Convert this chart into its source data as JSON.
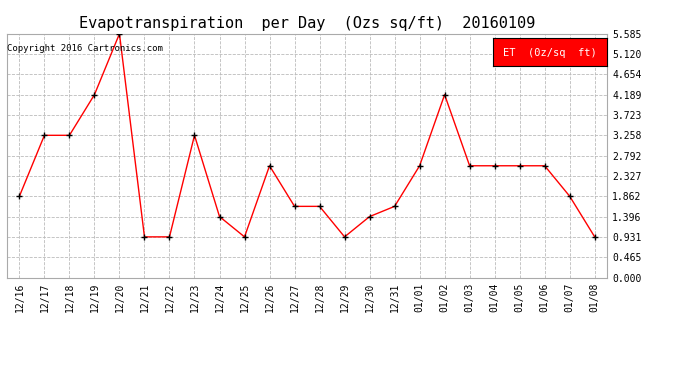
{
  "title": "Evapotranspiration  per Day  (Ozs sq/ft)  20160109",
  "copyright": "Copyright 2016 Cartronics.com",
  "legend_label": "ET  (0z/sq  ft)",
  "line_color": "red",
  "marker": "+",
  "marker_color": "black",
  "background_color": "#ffffff",
  "grid_color": "#bbbbbb",
  "legend_bg": "red",
  "legend_text_color": "white",
  "dates": [
    "12/16",
    "12/17",
    "12/18",
    "12/19",
    "12/20",
    "12/21",
    "12/22",
    "12/23",
    "12/24",
    "12/25",
    "12/26",
    "12/27",
    "12/28",
    "12/29",
    "12/30",
    "12/31",
    "01/01",
    "01/02",
    "01/03",
    "01/04",
    "01/05",
    "01/06",
    "01/07",
    "01/08"
  ],
  "values": [
    1.862,
    3.258,
    3.258,
    4.189,
    5.585,
    0.931,
    0.931,
    3.258,
    1.396,
    0.931,
    2.56,
    1.63,
    1.63,
    0.931,
    1.396,
    1.63,
    2.56,
    4.189,
    2.56,
    2.56,
    2.56,
    2.56,
    1.862,
    0.931
  ],
  "yticks": [
    0.0,
    0.465,
    0.931,
    1.396,
    1.862,
    2.327,
    2.792,
    3.258,
    3.723,
    4.189,
    4.654,
    5.12,
    5.585
  ],
  "ylim": [
    0.0,
    5.585
  ],
  "title_fontsize": 11,
  "copyright_fontsize": 6.5,
  "tick_fontsize": 7,
  "legend_fontsize": 7.5
}
